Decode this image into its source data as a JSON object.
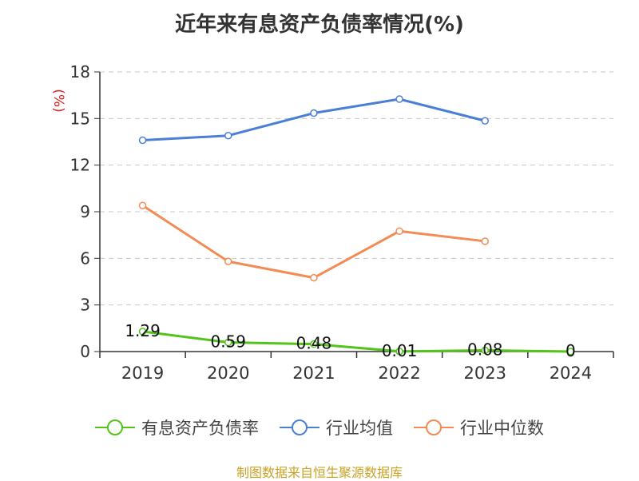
{
  "chart_data": {
    "type": "line",
    "title": "近年来有息资产负债率情况(%)",
    "ylabel": "(%)",
    "categories": [
      "2019",
      "2020",
      "2021",
      "2022",
      "2023",
      "2024"
    ],
    "ylim": [
      0,
      18
    ],
    "yticks": [
      0,
      3,
      6,
      9,
      12,
      15,
      18
    ],
    "grid": true,
    "legend_position": "bottom",
    "series": [
      {
        "name": "有息资产负债率",
        "color": "#52c41a",
        "values": [
          1.29,
          0.59,
          0.48,
          0.01,
          0.08,
          0
        ],
        "labels": [
          "1.29",
          "0.59",
          "0.48",
          "0.01",
          "0.08",
          "0"
        ]
      },
      {
        "name": "行业均值",
        "color": "#4a7fd8",
        "values": [
          13.6,
          13.9,
          15.35,
          16.25,
          14.85,
          null
        ]
      },
      {
        "name": "行业中位数",
        "color": "#f28b54",
        "values": [
          9.4,
          5.8,
          4.75,
          7.75,
          7.1,
          null
        ]
      }
    ]
  },
  "source_text": "制图数据来自恒生聚源数据库"
}
